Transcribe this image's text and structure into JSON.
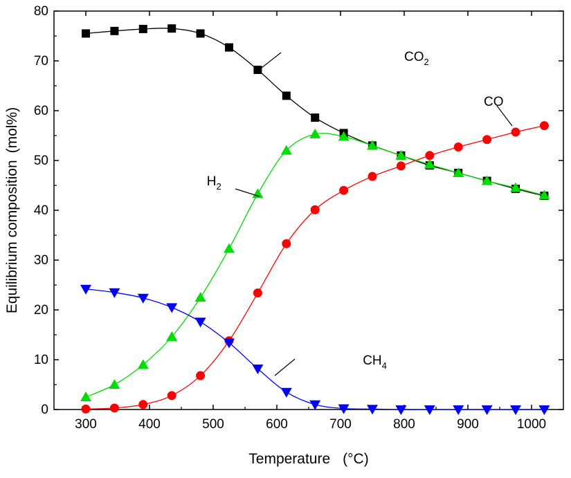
{
  "chart_data": {
    "type": "line",
    "title": "",
    "xlabel": "Temperature",
    "xunit": "°C",
    "ylabel": "Equilibrium composition",
    "yunit": "mol%",
    "xlim": [
      250,
      1050
    ],
    "ylim": [
      0,
      80
    ],
    "xticks": [
      300,
      400,
      500,
      600,
      700,
      800,
      900,
      1000
    ],
    "yticks": [
      0,
      10,
      20,
      30,
      40,
      50,
      60,
      70,
      80
    ],
    "grid": false,
    "legend": "none",
    "x": [
      300,
      345,
      390,
      435,
      480,
      525,
      570,
      615,
      660,
      705,
      750,
      795,
      840,
      885,
      930,
      975,
      1020
    ],
    "series": [
      {
        "name": "CO",
        "sub": "2",
        "marker": "square",
        "color": "#000000",
        "values": [
          75.5,
          76.0,
          76.4,
          76.5,
          75.5,
          72.7,
          68.2,
          63.0,
          58.6,
          55.5,
          53.0,
          51.0,
          49.0,
          47.5,
          45.9,
          44.3,
          42.9
        ],
        "label_pos": {
          "x": 800,
          "y": 70
        }
      },
      {
        "name": "CO",
        "sub": "",
        "marker": "circle",
        "color": "#ff0000",
        "values": [
          0.1,
          0.3,
          1.0,
          2.8,
          6.8,
          13.8,
          23.4,
          33.3,
          40.1,
          44.0,
          46.8,
          48.9,
          51.0,
          52.7,
          54.2,
          55.7,
          57.0
        ],
        "label_pos": {
          "x": 925,
          "y": 61
        }
      },
      {
        "name": "H",
        "sub": "2",
        "marker": "triangle-up",
        "color": "#00dd00",
        "values": [
          2.5,
          5.0,
          9.0,
          14.6,
          22.5,
          32.3,
          43.3,
          52.0,
          55.3,
          54.8,
          53.0,
          51.0,
          49.2,
          47.5,
          45.9,
          44.5,
          43.0
        ],
        "label_pos": {
          "x": 490,
          "y": 45
        }
      },
      {
        "name": "CH",
        "sub": "4",
        "marker": "triangle-down",
        "color": "#0000ff",
        "values": [
          24.2,
          23.5,
          22.4,
          20.5,
          17.6,
          13.4,
          8.2,
          3.5,
          1.0,
          0.2,
          0.1,
          0.0,
          0.0,
          0.0,
          0.0,
          0.0,
          0.0
        ],
        "label_pos": {
          "x": 735,
          "y": 9
        }
      }
    ]
  }
}
